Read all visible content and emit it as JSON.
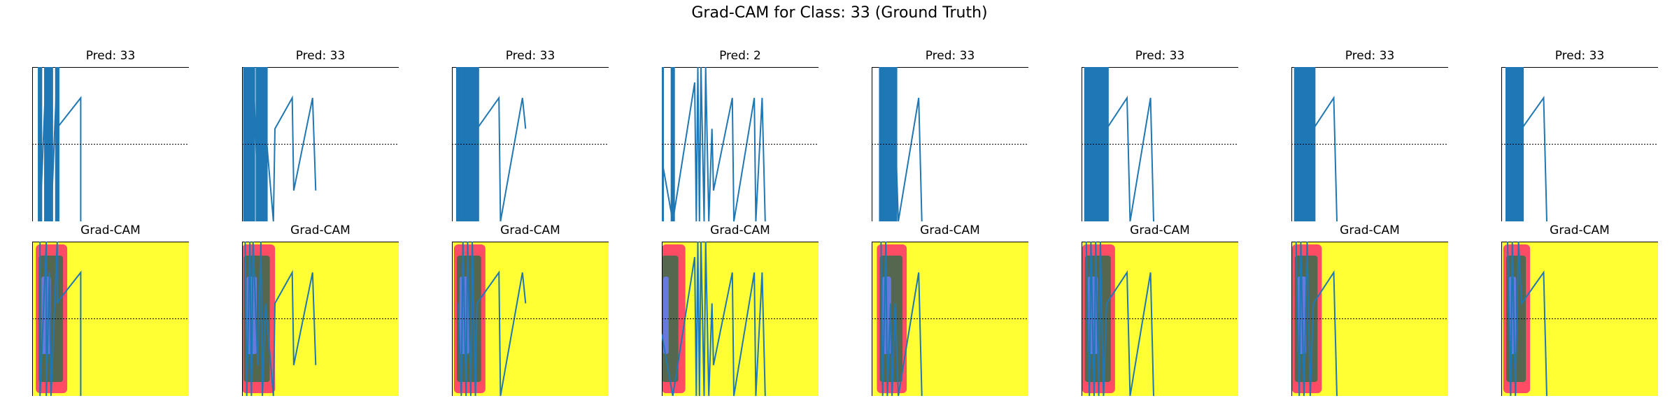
{
  "figure": {
    "title": "Grad-CAM for Class: 33 (Ground Truth)"
  },
  "panels": [
    {
      "pred_label": "Pred: 33",
      "cam_label": "Grad-CAM"
    },
    {
      "pred_label": "Pred: 33",
      "cam_label": "Grad-CAM"
    },
    {
      "pred_label": "Pred: 33",
      "cam_label": "Grad-CAM"
    },
    {
      "pred_label": "Pred: 2",
      "cam_label": "Grad-CAM"
    },
    {
      "pred_label": "Pred: 33",
      "cam_label": "Grad-CAM"
    },
    {
      "pred_label": "Pred: 33",
      "cam_label": "Grad-CAM"
    },
    {
      "pred_label": "Pred: 33",
      "cam_label": "Grad-CAM"
    },
    {
      "pred_label": "Pred: 33",
      "cam_label": "Grad-CAM"
    }
  ],
  "colors": {
    "signal": "#1f77b4",
    "cam_background": "#ffff33",
    "cam_hot": "#ff2d6e",
    "cam_mid": "#2a6f4a",
    "cam_cool": "#6a7dff"
  },
  "chart_data": {
    "type": "line",
    "title": "Grad-CAM for Class: 33 (Ground Truth)",
    "grid": false,
    "reference_line": "dotted horizontal line at mid-height in every panel",
    "rows": [
      "input signal with prediction",
      "Grad-CAM heatmap overlay"
    ],
    "panels": [
      {
        "prediction": 33,
        "x": [
          0.05,
          0.05,
          0.09,
          0.09,
          0.11,
          0.12,
          0.16,
          0.16,
          0.17,
          0.31,
          0.31
        ],
        "y": [
          1.0,
          0.0,
          1.0,
          0.0,
          0.8,
          0.0,
          1.0,
          0.6,
          0.62,
          0.8,
          0.0
        ]
      },
      {
        "prediction": 33,
        "x": [
          0.02,
          0.03,
          0.05,
          0.06,
          0.07,
          0.1,
          0.12,
          0.13,
          0.15,
          0.2,
          0.21,
          0.32,
          0.33,
          0.45,
          0.47
        ],
        "y": [
          1.0,
          0.0,
          1.0,
          0.0,
          1.0,
          0.2,
          1.0,
          0.0,
          0.6,
          0.0,
          0.6,
          0.8,
          0.2,
          0.8,
          0.2
        ]
      },
      {
        "prediction": 33,
        "x": [
          0.04,
          0.06,
          0.07,
          0.09,
          0.1,
          0.12,
          0.13,
          0.15,
          0.16,
          0.3,
          0.31,
          0.45,
          0.47
        ],
        "y": [
          0.6,
          0.0,
          1.0,
          0.0,
          1.0,
          0.0,
          1.0,
          0.0,
          0.6,
          0.8,
          0.0,
          0.8,
          0.6
        ]
      },
      {
        "prediction": 2,
        "x": [
          0.0,
          0.07,
          0.21,
          0.22,
          0.23,
          0.24,
          0.25,
          0.27,
          0.28,
          0.3,
          0.32,
          0.33,
          0.45,
          0.46,
          0.59,
          0.6,
          0.64,
          0.66
        ],
        "y": [
          0.4,
          0.0,
          0.9,
          0.0,
          1.0,
          0.0,
          1.0,
          0.0,
          1.0,
          0.0,
          0.6,
          0.2,
          0.8,
          0.0,
          0.8,
          0.0,
          0.8,
          0.0
        ]
      },
      {
        "prediction": 33,
        "x": [
          0.06,
          0.07,
          0.09,
          0.1,
          0.12,
          0.13,
          0.15,
          0.17,
          0.3,
          0.32
        ],
        "y": [
          1.0,
          0.0,
          1.0,
          0.0,
          0.6,
          0.0,
          0.6,
          0.0,
          0.8,
          0.0
        ]
      },
      {
        "prediction": 33,
        "x": [
          0.03,
          0.05,
          0.06,
          0.08,
          0.09,
          0.11,
          0.12,
          0.14,
          0.16,
          0.29,
          0.31,
          0.44,
          0.46
        ],
        "y": [
          1.0,
          0.0,
          1.0,
          0.0,
          1.0,
          0.0,
          1.0,
          0.0,
          0.6,
          0.8,
          0.0,
          0.8,
          0.0
        ]
      },
      {
        "prediction": 33,
        "x": [
          0.03,
          0.05,
          0.06,
          0.08,
          0.1,
          0.12,
          0.14,
          0.27,
          0.29
        ],
        "y": [
          1.0,
          0.0,
          1.0,
          0.0,
          1.0,
          0.0,
          0.6,
          0.8,
          0.0
        ]
      },
      {
        "prediction": 33,
        "x": [
          0.04,
          0.06,
          0.07,
          0.09,
          0.11,
          0.13,
          0.27,
          0.29
        ],
        "y": [
          1.0,
          0.0,
          1.0,
          0.0,
          1.0,
          0.6,
          0.8,
          0.0
        ]
      }
    ]
  }
}
